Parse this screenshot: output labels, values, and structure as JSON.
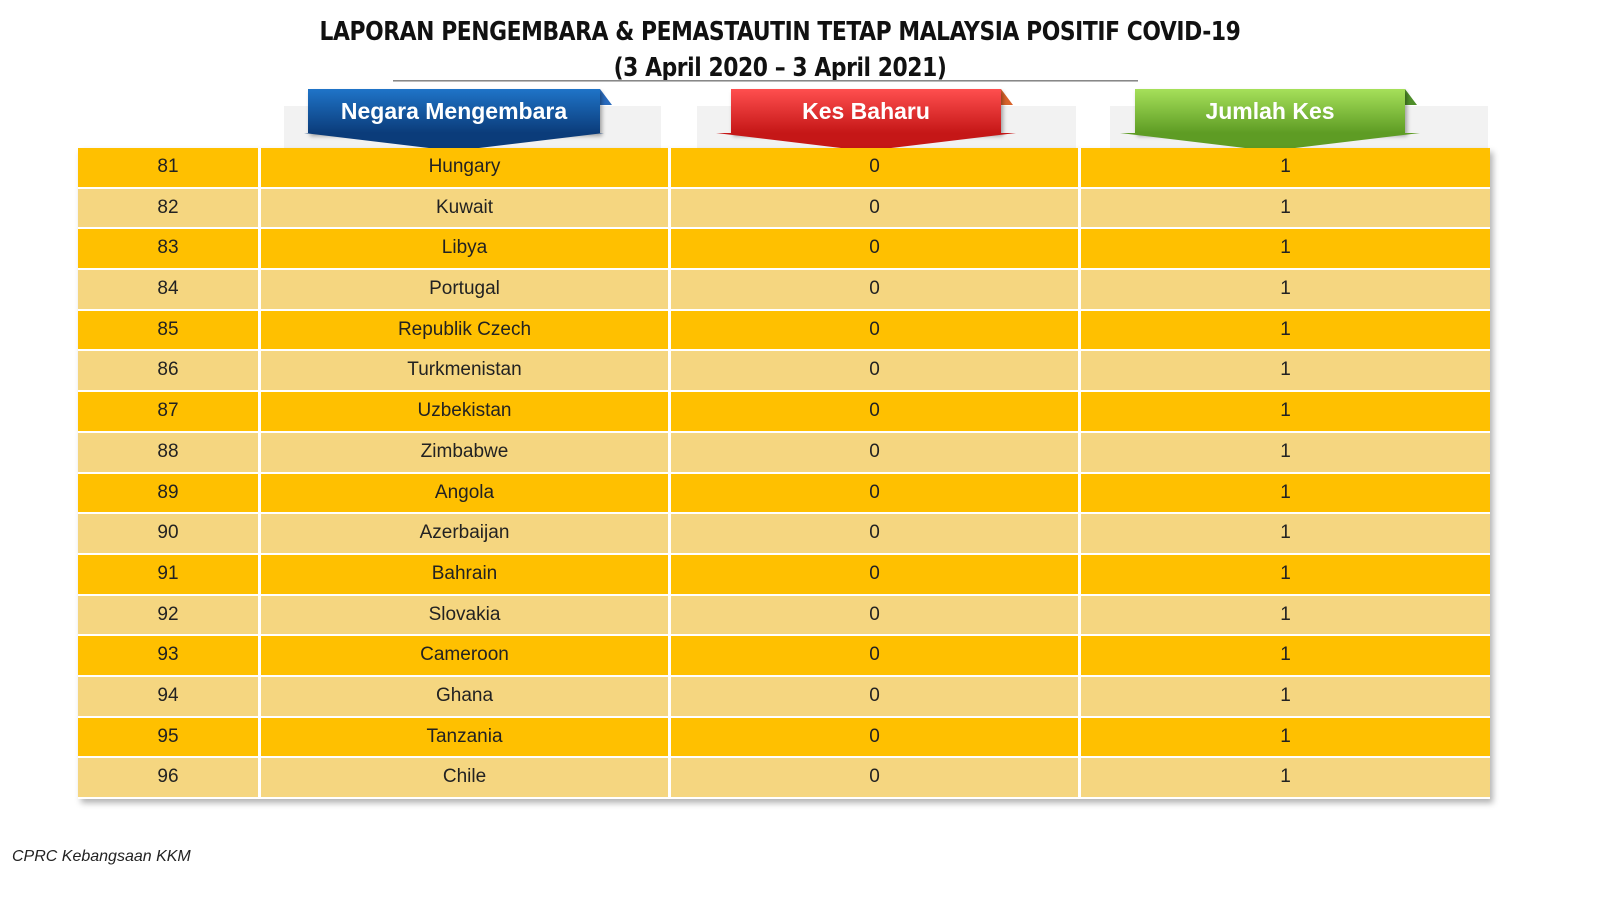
{
  "title": {
    "line1": "LAPORAN PENGEMBARA & PEMASTAUTIN TETAP MALAYSIA POSITIF COVID-19",
    "line2": "(3 April 2020 – 3 April  2021)"
  },
  "headers": {
    "country": "Negara Mengembara",
    "new_cases": "Kes Baharu",
    "total_cases": "Jumlah Kes"
  },
  "colors": {
    "row_dark": "#ffc000",
    "row_light": "#f5d680",
    "header_blue": "#0b3c7a",
    "header_red": "#c51717",
    "header_green": "#5e9c24"
  },
  "rows": [
    {
      "no": "81",
      "country": "Hungary",
      "new": "0",
      "total": "1"
    },
    {
      "no": "82",
      "country": "Kuwait",
      "new": "0",
      "total": "1"
    },
    {
      "no": "83",
      "country": "Libya",
      "new": "0",
      "total": "1"
    },
    {
      "no": "84",
      "country": "Portugal",
      "new": "0",
      "total": "1"
    },
    {
      "no": "85",
      "country": "Republik Czech",
      "new": "0",
      "total": "1"
    },
    {
      "no": "86",
      "country": "Turkmenistan",
      "new": "0",
      "total": "1"
    },
    {
      "no": "87",
      "country": "Uzbekistan",
      "new": "0",
      "total": "1"
    },
    {
      "no": "88",
      "country": "Zimbabwe",
      "new": "0",
      "total": "1"
    },
    {
      "no": "89",
      "country": "Angola",
      "new": "0",
      "total": "1"
    },
    {
      "no": "90",
      "country": "Azerbaijan",
      "new": "0",
      "total": "1"
    },
    {
      "no": "91",
      "country": "Bahrain",
      "new": "0",
      "total": "1"
    },
    {
      "no": "92",
      "country": "Slovakia",
      "new": "0",
      "total": "1"
    },
    {
      "no": "93",
      "country": "Cameroon",
      "new": "0",
      "total": "1"
    },
    {
      "no": "94",
      "country": "Ghana",
      "new": "0",
      "total": "1"
    },
    {
      "no": "95",
      "country": "Tanzania",
      "new": "0",
      "total": "1"
    },
    {
      "no": "96",
      "country": "Chile",
      "new": "0",
      "total": "1"
    }
  ],
  "footer": "CPRC Kebangsaan KKM"
}
